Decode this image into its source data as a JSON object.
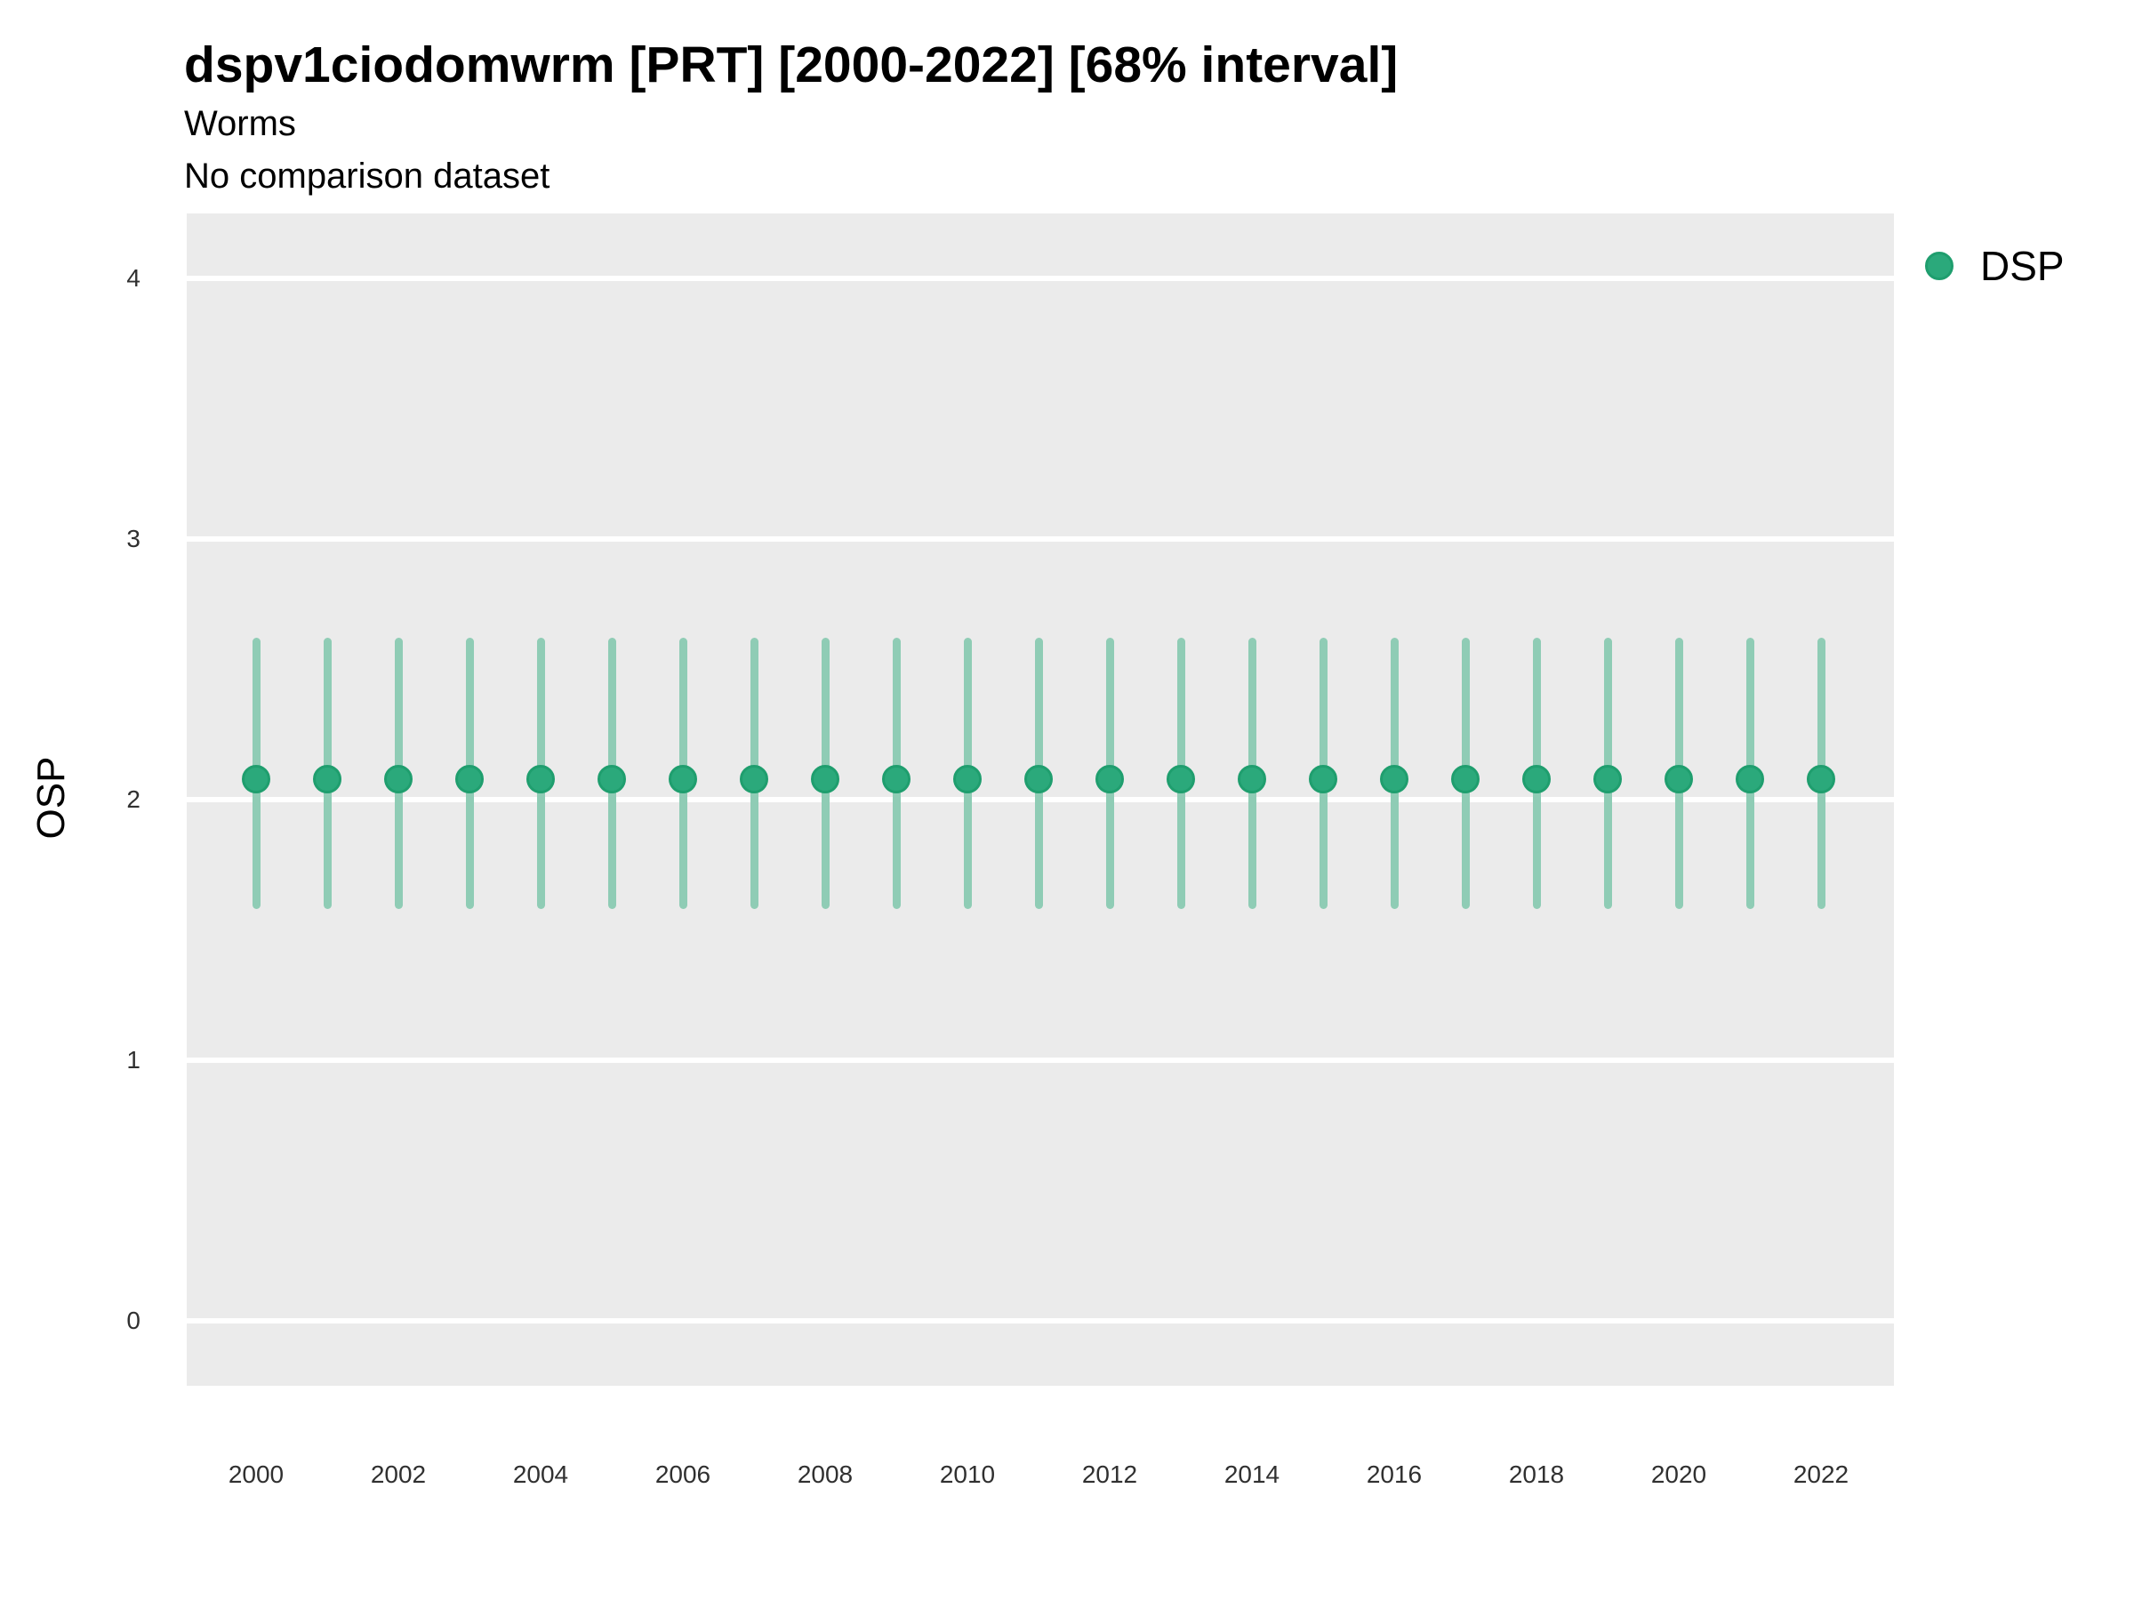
{
  "header": {
    "title": "dspv1ciodomwrm [PRT] [2000-2022] [68% interval]",
    "subtitle": "Worms",
    "note": "No comparison dataset"
  },
  "legend": {
    "items": [
      {
        "label": "DSP",
        "color": "#2BA97B",
        "border_color": "#1F9E6E"
      }
    ]
  },
  "chart_data": {
    "type": "scatter",
    "title": "dspv1ciodomwrm [PRT] [2000-2022] [68% interval]",
    "subtitle": "Worms",
    "note": "No comparison dataset",
    "xlabel": "",
    "ylabel": "OSP",
    "interval_label": "68% interval",
    "x": [
      2000,
      2001,
      2002,
      2003,
      2004,
      2005,
      2006,
      2007,
      2008,
      2009,
      2010,
      2011,
      2012,
      2013,
      2014,
      2015,
      2016,
      2017,
      2018,
      2019,
      2020,
      2021,
      2022
    ],
    "series": [
      {
        "name": "DSP",
        "values": [
          2.08,
          2.08,
          2.08,
          2.08,
          2.08,
          2.08,
          2.08,
          2.08,
          2.08,
          2.08,
          2.08,
          2.08,
          2.08,
          2.08,
          2.08,
          2.08,
          2.08,
          2.08,
          2.08,
          2.08,
          2.08,
          2.08,
          2.08
        ],
        "lower": [
          1.58,
          1.58,
          1.58,
          1.58,
          1.58,
          1.58,
          1.58,
          1.58,
          1.58,
          1.58,
          1.58,
          1.58,
          1.58,
          1.58,
          1.58,
          1.58,
          1.58,
          1.58,
          1.58,
          1.58,
          1.58,
          1.58,
          1.58
        ],
        "upper": [
          2.62,
          2.62,
          2.62,
          2.62,
          2.62,
          2.62,
          2.62,
          2.62,
          2.62,
          2.62,
          2.62,
          2.62,
          2.62,
          2.62,
          2.62,
          2.62,
          2.62,
          2.62,
          2.62,
          2.62,
          2.62,
          2.62,
          2.62
        ]
      }
    ],
    "ylim": [
      -0.25,
      4.25
    ],
    "yticks": [
      0,
      1,
      2,
      3,
      4
    ],
    "xticks": [
      2000,
      2002,
      2004,
      2006,
      2008,
      2010,
      2012,
      2014,
      2016,
      2018,
      2020,
      2022
    ],
    "grid": "major horizontal white lines on gray panel",
    "legend_position": "right",
    "colors": {
      "point": "#2BA97B",
      "point_border": "#1F9E6E",
      "errorbar": "#8FCCB5",
      "panel_bg": "#EBEBEB",
      "gridline": "#FFFFFF",
      "background": "#FFFFFF"
    }
  }
}
